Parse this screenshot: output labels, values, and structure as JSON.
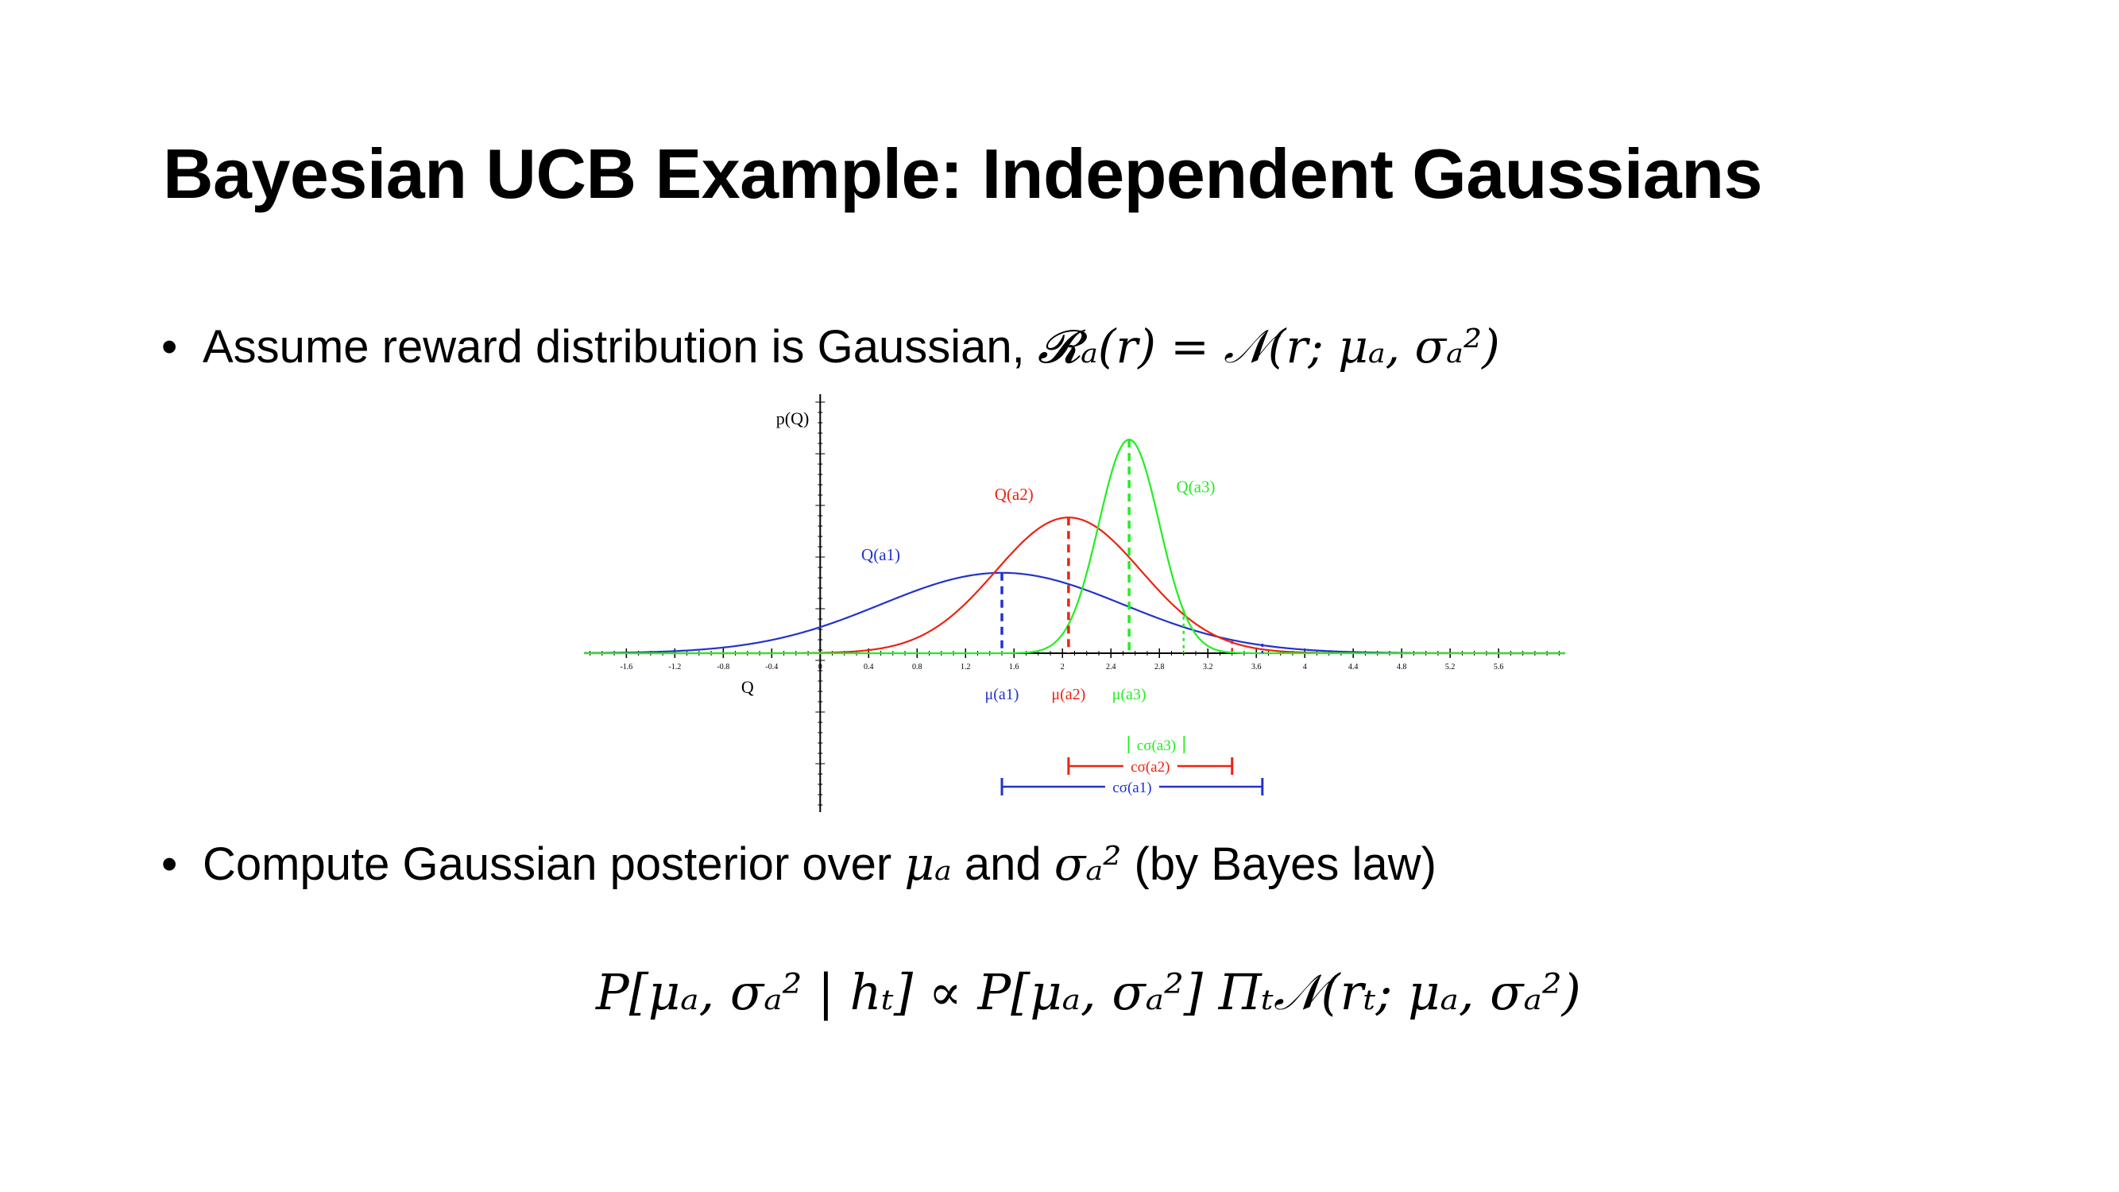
{
  "slide": {
    "title": "Bayesian UCB Example: Independent Gaussians",
    "bullet_1": {
      "text": "Assume reward distribution is Gaussian, ",
      "math": "𝓡ₐ(r) = 𝒩(r; μₐ, σₐ²)"
    },
    "bullet_2": {
      "text_a": "Compute Gaussian posterior over ",
      "mu": "μₐ",
      "text_b": " and ",
      "sigma": "σₐ²",
      "text_c": "  (by Bayes law)"
    },
    "equation": "P[μₐ, σₐ² | hₜ] ∝ P[μₐ, σₐ²] Πₜ𝒩(rₜ; μₐ, σₐ²)"
  },
  "chart_data": {
    "type": "line",
    "xlabel": "Q",
    "ylabel": "p(Q)",
    "xlim": [
      -1.95,
      6.15
    ],
    "ylim": [
      0,
      0.43
    ],
    "x_ticks": [
      "-1.6",
      "-1.2",
      "-0.8",
      "-0.4",
      "0",
      "0.4",
      "0.8",
      "1.2",
      "1.6",
      "2",
      "2.4",
      "2.8",
      "3.2",
      "3.6",
      "4",
      "4.4",
      "4.8",
      "5.2",
      "5.6"
    ],
    "y_axis_x": 0,
    "series": [
      {
        "name": "Q(a1)",
        "color": "#2233cc",
        "mean": 1.5,
        "sd": 1.0,
        "peak": 0.16,
        "upper_bound": 3.65
      },
      {
        "name": "Q(a2)",
        "color": "#ee2211",
        "mean": 2.05,
        "sd": 0.6,
        "peak": 0.27,
        "upper_bound": 3.4
      },
      {
        "name": "Q(a3)",
        "color": "#22ee22",
        "mean": 2.55,
        "sd": 0.25,
        "peak": 0.425,
        "upper_bound": 3.0
      }
    ],
    "mean_labels": [
      "μ(a1)",
      "μ(a2)",
      "μ(a3)"
    ],
    "interval_labels": [
      "cσ(a1)",
      "cσ(a2)",
      "cσ(a3)"
    ]
  }
}
